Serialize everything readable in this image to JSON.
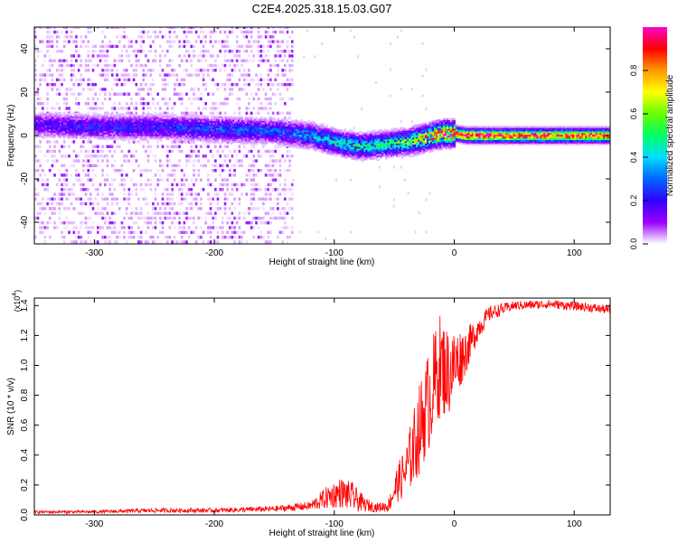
{
  "title": "C2E4.2025.318.15.03.G07",
  "chart_data": [
    {
      "type": "heatmap",
      "panel": "spectrogram",
      "xlabel": "Height of straight line (km)",
      "ylabel": "Frequency (Hz)",
      "xlim": [
        -350,
        130
      ],
      "ylim": [
        -50,
        50
      ],
      "xticks": [
        -300,
        -200,
        -100,
        0,
        100
      ],
      "xtick_labels": [
        "-300",
        "-200",
        "-100",
        "0",
        "100"
      ],
      "yticks": [
        -40,
        -20,
        0,
        20,
        40
      ],
      "ytick_labels": [
        "-40",
        "-20",
        "0",
        "20",
        "40"
      ],
      "noise_region_km": [
        -350,
        -135
      ],
      "ridge": {
        "x": [
          -345,
          -300,
          -250,
          -200,
          -150,
          -120,
          -100,
          -80,
          -60,
          -40,
          -25,
          -10,
          0,
          10,
          50,
          130
        ],
        "frequency": [
          5,
          4,
          4,
          3,
          2,
          0,
          -3,
          -5,
          -4,
          -3,
          -1,
          1,
          1,
          0,
          0,
          0
        ],
        "amplitude": [
          0.2,
          0.25,
          0.25,
          0.3,
          0.3,
          0.4,
          0.45,
          0.5,
          0.5,
          0.6,
          0.8,
          0.95,
          1.0,
          1.0,
          0.95,
          0.9
        ]
      },
      "colorbar": {
        "label": "Normalized spectral amplitude",
        "min": 0.0,
        "max": 1.0,
        "ticks": [
          0.0,
          0.2,
          0.4,
          0.6,
          0.8
        ],
        "tick_labels": [
          "0.0",
          "0.2",
          "0.4",
          "0.6",
          "0.8"
        ],
        "colors": [
          "#ffffff",
          "#9900ff",
          "#3300ff",
          "#0066ff",
          "#00ddff",
          "#00ff66",
          "#66ff00",
          "#ffff00",
          "#ff9900",
          "#ff0000",
          "#ff00cc"
        ]
      }
    },
    {
      "type": "line",
      "panel": "snr",
      "xlabel": "Height of straight line (km)",
      "ylabel": "SNR (10 * v/v)",
      "y_scale_label": "(x10",
      "y_scale_exp": "4",
      "xlim": [
        -350,
        130
      ],
      "ylim": [
        0,
        1.45
      ],
      "xticks": [
        -300,
        -200,
        -100,
        0,
        100
      ],
      "xtick_labels": [
        "-300",
        "-200",
        "-100",
        "0",
        "100"
      ],
      "yticks": [
        0.0,
        0.2,
        0.4,
        0.6,
        0.8,
        1.0,
        1.2,
        1.4
      ],
      "ytick_labels": [
        "0.0",
        "0.2",
        "0.4",
        "0.6",
        "0.8",
        "1.0",
        "1.2",
        "1.4"
      ],
      "color": "#ff0000",
      "series": [
        {
          "name": "SNR",
          "x": [
            -350,
            -300,
            -250,
            -200,
            -150,
            -120,
            -105,
            -95,
            -85,
            -75,
            -65,
            -55,
            -48,
            -40,
            -30,
            -20,
            -12,
            -5,
            0,
            10,
            20,
            30,
            50,
            80,
            110,
            130
          ],
          "y": [
            0.02,
            0.02,
            0.03,
            0.03,
            0.04,
            0.06,
            0.12,
            0.15,
            0.12,
            0.07,
            0.05,
            0.06,
            0.2,
            0.3,
            0.55,
            0.8,
            1.0,
            0.95,
            1.0,
            1.1,
            1.25,
            1.35,
            1.4,
            1.41,
            1.39,
            1.37
          ],
          "spread": [
            0.01,
            0.01,
            0.015,
            0.015,
            0.02,
            0.03,
            0.08,
            0.1,
            0.1,
            0.05,
            0.03,
            0.04,
            0.12,
            0.18,
            0.3,
            0.35,
            0.35,
            0.3,
            0.25,
            0.15,
            0.08,
            0.05,
            0.03,
            0.03,
            0.03,
            0.03
          ]
        }
      ]
    }
  ]
}
